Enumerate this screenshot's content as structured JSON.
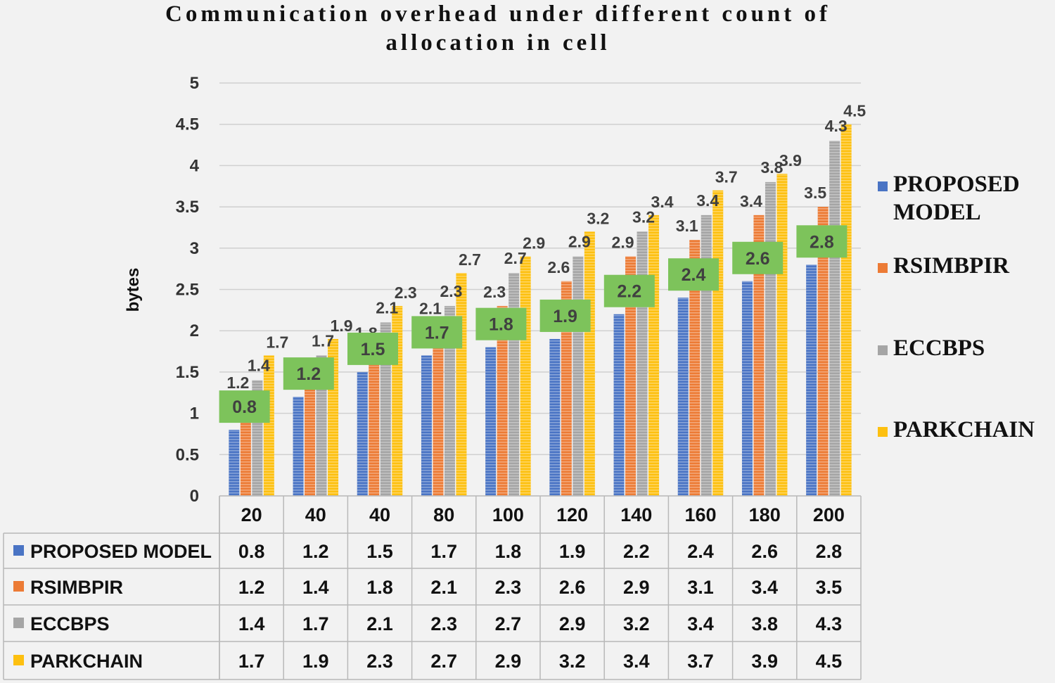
{
  "colors": {
    "background": "#f2f2f2",
    "grid": "#d0d0d0",
    "table_line": "#b8b8b8",
    "label_box": "#7dc35b",
    "series": [
      "#4a74c4",
      "#ec7b35",
      "#a5a5a5",
      "#fdc010"
    ]
  },
  "chart_data": {
    "type": "bar",
    "title_lines": [
      "Communication overhead  under different count of",
      "allocation in cell"
    ],
    "xlabel": "",
    "ylabel": "bytes",
    "ylim": [
      0,
      5
    ],
    "yticks": [
      "0",
      "0.5",
      "1",
      "1.5",
      "2",
      "2.5",
      "3",
      "3.5",
      "4",
      "4.5",
      "5"
    ],
    "grid": true,
    "legend_position": "right",
    "categories": [
      "20",
      "40",
      "40",
      "80",
      "100",
      "120",
      "140",
      "160",
      "180",
      "200"
    ],
    "series": [
      {
        "name": "PROPOSED MODEL",
        "legend_lines": [
          "PROPOSED",
          "MODEL"
        ],
        "values": [
          0.8,
          1.2,
          1.5,
          1.7,
          1.8,
          1.9,
          2.2,
          2.4,
          2.6,
          2.8
        ]
      },
      {
        "name": "RSIMBPIR",
        "legend_lines": [
          "RSIMBPIR"
        ],
        "values": [
          1.2,
          1.4,
          1.8,
          2.1,
          2.3,
          2.6,
          2.9,
          3.1,
          3.4,
          3.5
        ]
      },
      {
        "name": "ECCBPS",
        "legend_lines": [
          "ECCBPS"
        ],
        "values": [
          1.4,
          1.7,
          2.1,
          2.3,
          2.7,
          2.9,
          3.2,
          3.4,
          3.8,
          4.3
        ]
      },
      {
        "name": "PARKCHAIN",
        "legend_lines": [
          "PARKCHAIN"
        ],
        "values": [
          1.7,
          1.9,
          2.3,
          2.7,
          2.9,
          3.2,
          3.4,
          3.7,
          3.9,
          4.5
        ]
      }
    ]
  }
}
